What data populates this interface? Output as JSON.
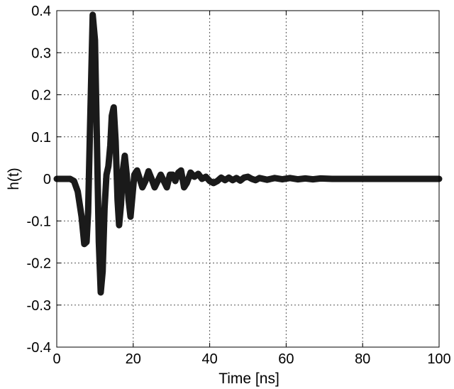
{
  "chart_data": {
    "type": "line",
    "title": "",
    "xlabel": "Time [ns]",
    "ylabel": "h(t)",
    "xlim": [
      0,
      100
    ],
    "ylim": [
      -0.4,
      0.4
    ],
    "xticks": [
      "0",
      "20",
      "40",
      "60",
      "80",
      "100"
    ],
    "yticks": [
      "0.4",
      "0.3",
      "0.2",
      "0.1",
      "0",
      "-0.1",
      "-0.2",
      "-0.3",
      "-0.4"
    ],
    "grid": true,
    "legend": "none",
    "series": [
      {
        "color": "#1a1a1a",
        "x": [
          0,
          3.5,
          4.5,
          5.5,
          6.5,
          7.2,
          7.8,
          8.2,
          8.7,
          9.4,
          10,
          10.6,
          11,
          11.5,
          12,
          12.5,
          13,
          13.5,
          14,
          14.4,
          14.9,
          15.4,
          15.9,
          16.3,
          16.8,
          17.3,
          17.8,
          18.3,
          18.8,
          19.3,
          19.8,
          20.3,
          21,
          21.7,
          22.4,
          23.2,
          24,
          24.8,
          25.6,
          26.4,
          27.2,
          28,
          28.8,
          29.6,
          30.3,
          31,
          31.8,
          32.5,
          33.3,
          34,
          35,
          36,
          37,
          38,
          39,
          40,
          41,
          42,
          43,
          44,
          45,
          46,
          47,
          48,
          49,
          50,
          51,
          52,
          53,
          55,
          57,
          59,
          61,
          63,
          65,
          67,
          69,
          72,
          75,
          78,
          82,
          86,
          90,
          95,
          100
        ],
        "y": [
          0,
          0,
          -0.005,
          -0.03,
          -0.09,
          -0.155,
          -0.15,
          -0.08,
          0.12,
          0.39,
          0.33,
          0.05,
          -0.15,
          -0.27,
          -0.22,
          -0.07,
          0.01,
          0.03,
          0.08,
          0.15,
          0.17,
          0.09,
          -0.05,
          -0.11,
          -0.06,
          0.02,
          0.055,
          0.01,
          -0.05,
          -0.09,
          -0.04,
          0.01,
          0.02,
          0.0,
          -0.02,
          -0.005,
          0.018,
          0.0,
          -0.02,
          -0.005,
          0.01,
          -0.005,
          -0.02,
          0.01,
          0.01,
          -0.005,
          0.015,
          0.02,
          -0.02,
          -0.01,
          0.015,
          0.005,
          0.012,
          0.0,
          0.005,
          -0.005,
          -0.01,
          -0.005,
          0.003,
          -0.003,
          0.003,
          -0.003,
          0.002,
          -0.004,
          0.003,
          0.005,
          0.0,
          -0.003,
          0.002,
          -0.002,
          0.002,
          -0.001,
          0.002,
          -0.001,
          0.001,
          -0.001,
          0.001,
          0.0,
          0.0,
          0.0,
          0.0,
          0.0,
          0.0,
          0.0,
          0.0
        ]
      }
    ]
  }
}
